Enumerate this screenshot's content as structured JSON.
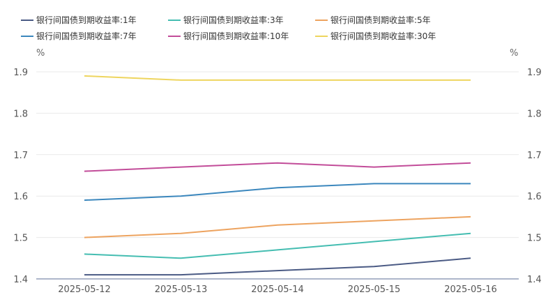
{
  "chart_data": {
    "type": "line",
    "categories": [
      "2025-05-12",
      "2025-05-13",
      "2025-05-14",
      "2025-05-15",
      "2025-05-16"
    ],
    "y_unit_left": "%",
    "y_unit_right": "%",
    "ylim": [
      1.4,
      1.9
    ],
    "y_ticks": [
      "1.4",
      "1.5",
      "1.6",
      "1.7",
      "1.8",
      "1.9"
    ],
    "grid": true,
    "legend_position": "top-left",
    "series": [
      {
        "name": "银行间国债到期收益率:1年",
        "color": "#4a5a84",
        "values": [
          1.41,
          1.41,
          1.42,
          1.43,
          1.45
        ]
      },
      {
        "name": "银行间国债到期收益率:3年",
        "color": "#44bdb1",
        "values": [
          1.46,
          1.45,
          1.47,
          1.49,
          1.51
        ]
      },
      {
        "name": "银行间国债到期收益率:5年",
        "color": "#eda35f",
        "values": [
          1.5,
          1.51,
          1.53,
          1.54,
          1.55
        ]
      },
      {
        "name": "银行间国债到期收益率:7年",
        "color": "#3b87bd",
        "values": [
          1.59,
          1.6,
          1.62,
          1.63,
          1.63
        ]
      },
      {
        "name": "银行间国债到期收益率:10年",
        "color": "#c24c99",
        "values": [
          1.66,
          1.67,
          1.68,
          1.67,
          1.68
        ]
      },
      {
        "name": "银行间国债到期收益率:30年",
        "color": "#eed55e",
        "values": [
          1.89,
          1.88,
          1.88,
          1.88,
          1.88
        ]
      }
    ]
  }
}
